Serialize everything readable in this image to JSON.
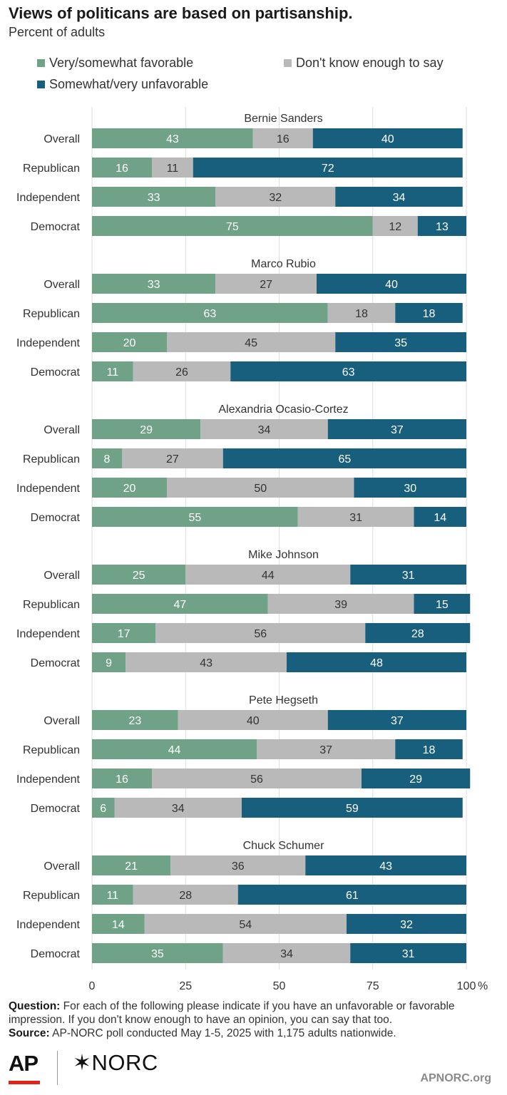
{
  "title": "Views of politicans are based on partisanship.",
  "subtitle": "Percent of adults",
  "legend": [
    {
      "label": "Very/somewhat favorable",
      "color": "#6fa287"
    },
    {
      "label": "Don't know enough to say",
      "color": "#b9b9b9"
    },
    {
      "label": "Somewhat/very unfavorable",
      "color": "#185f7e"
    }
  ],
  "chart_data": {
    "type": "bar",
    "orientation": "horizontal",
    "stacked": true,
    "xlim": [
      0,
      100
    ],
    "x_ticks": [
      0,
      25,
      50,
      75,
      100
    ],
    "x_unit": "%",
    "grid": true,
    "groups": [
      {
        "name": "Bernie Sanders",
        "rows": [
          {
            "label": "Overall",
            "values": [
              43,
              16,
              40
            ]
          },
          {
            "label": "Republican",
            "values": [
              16,
              11,
              72
            ]
          },
          {
            "label": "Independent",
            "values": [
              33,
              32,
              34
            ]
          },
          {
            "label": "Democrat",
            "values": [
              75,
              12,
              13
            ]
          }
        ]
      },
      {
        "name": "Marco Rubio",
        "rows": [
          {
            "label": "Overall",
            "values": [
              33,
              27,
              40
            ]
          },
          {
            "label": "Republican",
            "values": [
              63,
              18,
              18
            ]
          },
          {
            "label": "Independent",
            "values": [
              20,
              45,
              35
            ]
          },
          {
            "label": "Democrat",
            "values": [
              11,
              26,
              63
            ]
          }
        ]
      },
      {
        "name": "Alexandria Ocasio-Cortez",
        "rows": [
          {
            "label": "Overall",
            "values": [
              29,
              34,
              37
            ]
          },
          {
            "label": "Republican",
            "values": [
              8,
              27,
              65
            ]
          },
          {
            "label": "Independent",
            "values": [
              20,
              50,
              30
            ]
          },
          {
            "label": "Democrat",
            "values": [
              55,
              31,
              14
            ]
          }
        ]
      },
      {
        "name": "Mike Johnson",
        "rows": [
          {
            "label": "Overall",
            "values": [
              25,
              44,
              31
            ]
          },
          {
            "label": "Republican",
            "values": [
              47,
              39,
              15
            ]
          },
          {
            "label": "Independent",
            "values": [
              17,
              56,
              28
            ]
          },
          {
            "label": "Democrat",
            "values": [
              9,
              43,
              48
            ]
          }
        ]
      },
      {
        "name": "Pete Hegseth",
        "rows": [
          {
            "label": "Overall",
            "values": [
              23,
              40,
              37
            ]
          },
          {
            "label": "Republican",
            "values": [
              44,
              37,
              18
            ]
          },
          {
            "label": "Independent",
            "values": [
              16,
              56,
              29
            ]
          },
          {
            "label": "Democrat",
            "values": [
              6,
              34,
              59
            ]
          }
        ]
      },
      {
        "name": "Chuck Schumer",
        "rows": [
          {
            "label": "Overall",
            "values": [
              21,
              36,
              43
            ]
          },
          {
            "label": "Republican",
            "values": [
              11,
              28,
              61
            ]
          },
          {
            "label": "Independent",
            "values": [
              14,
              54,
              32
            ]
          },
          {
            "label": "Democrat",
            "values": [
              35,
              34,
              31
            ]
          }
        ]
      }
    ]
  },
  "notes": {
    "question_label": "Question:",
    "question_text": "For each of the following please indicate if you have an unfavorable or favorable impression. If you don't know enough to have an opinion, you can say that too.",
    "source_label": "Source:",
    "source_text": "AP-NORC poll conducted May 1-5, 2025 with 1,175 adults nationwide."
  },
  "footer": {
    "logo_ap": "AP",
    "logo_norc": "✶NORC",
    "url": "APNORC.org"
  }
}
